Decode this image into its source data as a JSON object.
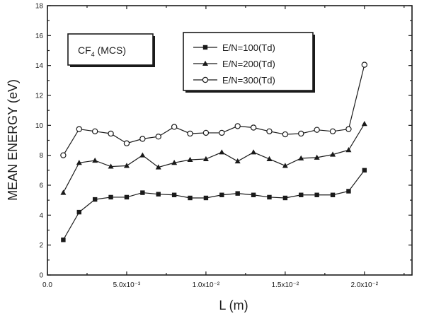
{
  "chart_data": {
    "type": "line",
    "xlabel": "L (m)",
    "ylabel": "MEAN ENERGY (eV)",
    "xlim": [
      0,
      0.023
    ],
    "ylim": [
      0,
      18
    ],
    "x_ticks": [
      0,
      0.005,
      0.01,
      0.015,
      0.02
    ],
    "x_tick_labels": [
      "0.0",
      "5.0x10⁻³",
      "1.0x10⁻²",
      "1.5x10⁻²",
      "2.0x10⁻²"
    ],
    "y_ticks": [
      0,
      2,
      4,
      6,
      8,
      10,
      12,
      14,
      16,
      18
    ],
    "y_tick_labels": [
      "0",
      "2",
      "4",
      "6",
      "8",
      "10",
      "12",
      "14",
      "16",
      "18"
    ],
    "annotation": {
      "main": "CF",
      "sub": "4",
      "rest": " (MCS)"
    },
    "legend_position": "top-right",
    "x": [
      0.001,
      0.002,
      0.003,
      0.004,
      0.005,
      0.006,
      0.007,
      0.008,
      0.009,
      0.01,
      0.011,
      0.012,
      0.013,
      0.014,
      0.015,
      0.016,
      0.017,
      0.018,
      0.019,
      0.02
    ],
    "series": [
      {
        "name": "E/N=100(Td)",
        "marker": "filled-square",
        "values": [
          2.35,
          4.2,
          5.05,
          5.2,
          5.2,
          5.5,
          5.4,
          5.35,
          5.15,
          5.15,
          5.35,
          5.45,
          5.35,
          5.2,
          5.15,
          5.35,
          5.35,
          5.35,
          5.6,
          7.0
        ]
      },
      {
        "name": "E/N=200(Td)",
        "marker": "filled-triangle",
        "values": [
          5.5,
          7.5,
          7.65,
          7.25,
          7.3,
          8.0,
          7.2,
          7.5,
          7.7,
          7.75,
          8.2,
          7.6,
          8.2,
          7.75,
          7.3,
          7.8,
          7.85,
          8.05,
          8.35,
          10.1
        ]
      },
      {
        "name": "E/N=300(Td)",
        "marker": "open-circle",
        "values": [
          8.0,
          9.75,
          9.6,
          9.45,
          8.8,
          9.1,
          9.25,
          9.9,
          9.45,
          9.5,
          9.5,
          9.95,
          9.85,
          9.6,
          9.4,
          9.45,
          9.7,
          9.6,
          9.75,
          14.05
        ]
      }
    ]
  }
}
